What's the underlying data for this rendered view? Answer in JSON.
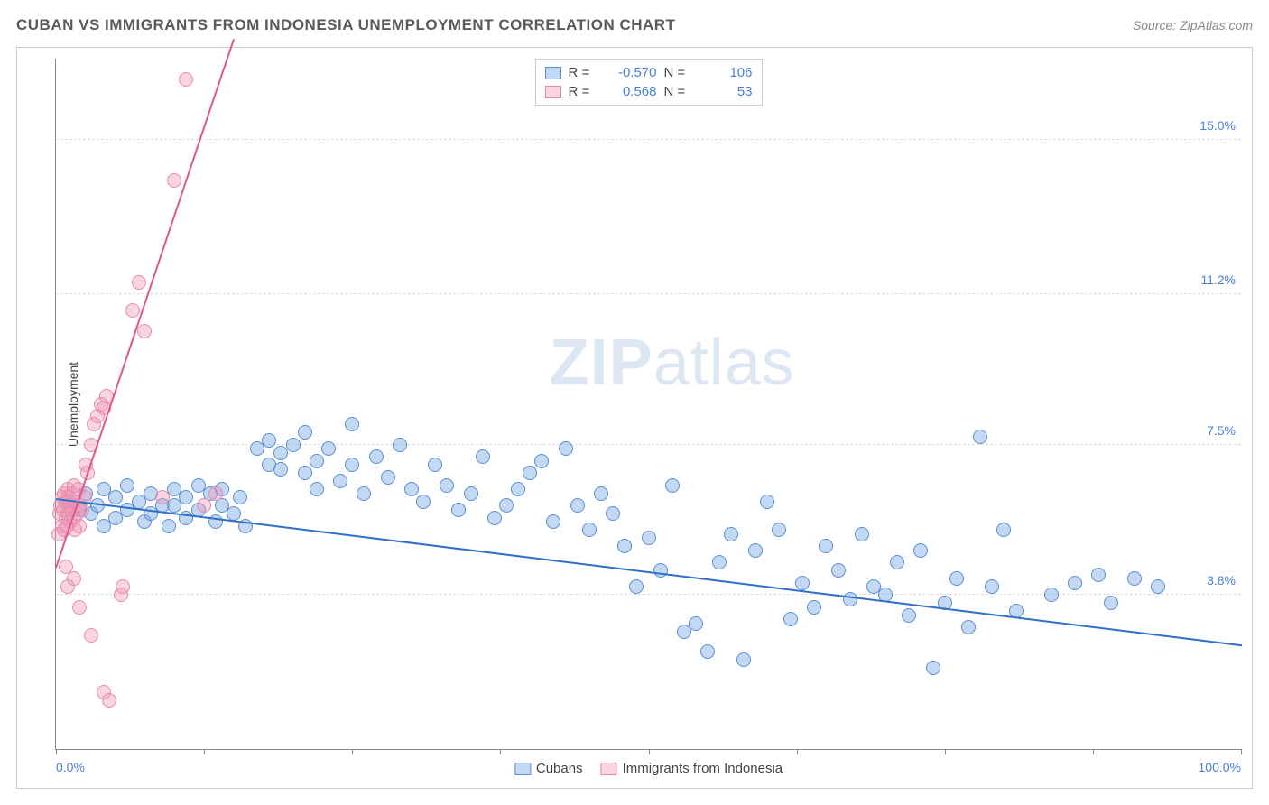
{
  "header": {
    "title": "CUBAN VS IMMIGRANTS FROM INDONESIA UNEMPLOYMENT CORRELATION CHART",
    "source": "Source: ZipAtlas.com"
  },
  "watermark": {
    "zip": "ZIP",
    "atlas": "atlas"
  },
  "chart": {
    "type": "scatter",
    "ylabel": "Unemployment",
    "xlim": [
      0,
      100
    ],
    "ylim": [
      0,
      17
    ],
    "x_ticks": [
      0,
      12.5,
      25,
      37.5,
      50,
      62.5,
      75,
      87.5,
      100
    ],
    "x_tick_labels_shown": {
      "0": "0.0%",
      "100": "100.0%"
    },
    "y_gridlines": [
      3.8,
      7.5,
      11.2,
      15.0
    ],
    "y_tick_labels": [
      "3.8%",
      "7.5%",
      "11.2%",
      "15.0%"
    ],
    "background_color": "#ffffff",
    "grid_color": "#dddddd",
    "axis_color": "#888888",
    "label_color": "#4a7fd8",
    "point_radius": 8,
    "series": [
      {
        "name": "Cubans",
        "fill_color": "rgba(122, 168, 228, 0.45)",
        "stroke_color": "#5a8fd0",
        "trend_color": "#2e6fc9",
        "R": "-0.570",
        "N": "106",
        "trend": {
          "x1": 0,
          "y1": 6.2,
          "x2": 100,
          "y2": 2.6
        },
        "points": [
          [
            1,
            6.1
          ],
          [
            2,
            5.9
          ],
          [
            2.5,
            6.3
          ],
          [
            3,
            5.8
          ],
          [
            3.5,
            6.0
          ],
          [
            4,
            6.4
          ],
          [
            4,
            5.5
          ],
          [
            5,
            6.2
          ],
          [
            5,
            5.7
          ],
          [
            6,
            6.5
          ],
          [
            6,
            5.9
          ],
          [
            7,
            6.1
          ],
          [
            7.5,
            5.6
          ],
          [
            8,
            6.3
          ],
          [
            8,
            5.8
          ],
          [
            9,
            6.0
          ],
          [
            9.5,
            5.5
          ],
          [
            10,
            6.4
          ],
          [
            10,
            6.0
          ],
          [
            11,
            5.7
          ],
          [
            11,
            6.2
          ],
          [
            12,
            6.5
          ],
          [
            12,
            5.9
          ],
          [
            13,
            6.3
          ],
          [
            13.5,
            5.6
          ],
          [
            14,
            6.0
          ],
          [
            14,
            6.4
          ],
          [
            15,
            5.8
          ],
          [
            15.5,
            6.2
          ],
          [
            16,
            5.5
          ],
          [
            17,
            7.4
          ],
          [
            18,
            7.0
          ],
          [
            18,
            7.6
          ],
          [
            19,
            6.9
          ],
          [
            19,
            7.3
          ],
          [
            20,
            7.5
          ],
          [
            21,
            6.8
          ],
          [
            21,
            7.8
          ],
          [
            22,
            7.1
          ],
          [
            22,
            6.4
          ],
          [
            23,
            7.4
          ],
          [
            24,
            6.6
          ],
          [
            25,
            7.0
          ],
          [
            25,
            8.0
          ],
          [
            26,
            6.3
          ],
          [
            27,
            7.2
          ],
          [
            28,
            6.7
          ],
          [
            29,
            7.5
          ],
          [
            30,
            6.4
          ],
          [
            31,
            6.1
          ],
          [
            32,
            7.0
          ],
          [
            33,
            6.5
          ],
          [
            34,
            5.9
          ],
          [
            35,
            6.3
          ],
          [
            36,
            7.2
          ],
          [
            37,
            5.7
          ],
          [
            38,
            6.0
          ],
          [
            39,
            6.4
          ],
          [
            40,
            6.8
          ],
          [
            41,
            7.1
          ],
          [
            42,
            5.6
          ],
          [
            43,
            7.4
          ],
          [
            44,
            6.0
          ],
          [
            45,
            5.4
          ],
          [
            46,
            6.3
          ],
          [
            47,
            5.8
          ],
          [
            48,
            5.0
          ],
          [
            49,
            4.0
          ],
          [
            50,
            5.2
          ],
          [
            51,
            4.4
          ],
          [
            52,
            6.5
          ],
          [
            53,
            2.9
          ],
          [
            54,
            3.1
          ],
          [
            55,
            2.4
          ],
          [
            56,
            4.6
          ],
          [
            57,
            5.3
          ],
          [
            58,
            2.2
          ],
          [
            59,
            4.9
          ],
          [
            60,
            6.1
          ],
          [
            61,
            5.4
          ],
          [
            62,
            3.2
          ],
          [
            63,
            4.1
          ],
          [
            64,
            3.5
          ],
          [
            65,
            5.0
          ],
          [
            66,
            4.4
          ],
          [
            67,
            3.7
          ],
          [
            68,
            5.3
          ],
          [
            69,
            4.0
          ],
          [
            70,
            3.8
          ],
          [
            71,
            4.6
          ],
          [
            72,
            3.3
          ],
          [
            73,
            4.9
          ],
          [
            74,
            2.0
          ],
          [
            75,
            3.6
          ],
          [
            76,
            4.2
          ],
          [
            77,
            3.0
          ],
          [
            78,
            7.7
          ],
          [
            79,
            4.0
          ],
          [
            80,
            5.4
          ],
          [
            81,
            3.4
          ],
          [
            84,
            3.8
          ],
          [
            86,
            4.1
          ],
          [
            88,
            4.3
          ],
          [
            89,
            3.6
          ],
          [
            91,
            4.2
          ],
          [
            93,
            4.0
          ]
        ]
      },
      {
        "name": "Immigrants from Indonesia",
        "fill_color": "rgba(240, 150, 180, 0.40)",
        "stroke_color": "#e68aad",
        "trend_color": "#e05590",
        "R": "0.568",
        "N": "53",
        "trend": {
          "x1": 0,
          "y1": 4.5,
          "x2": 15,
          "y2": 17.5
        },
        "points": [
          [
            0.2,
            5.3
          ],
          [
            0.3,
            5.8
          ],
          [
            0.4,
            6.0
          ],
          [
            0.5,
            5.5
          ],
          [
            0.5,
            6.2
          ],
          [
            0.6,
            5.9
          ],
          [
            0.7,
            5.4
          ],
          [
            0.7,
            6.3
          ],
          [
            0.8,
            5.7
          ],
          [
            0.8,
            6.1
          ],
          [
            0.9,
            5.5
          ],
          [
            1.0,
            6.4
          ],
          [
            1.0,
            5.8
          ],
          [
            1.1,
            6.2
          ],
          [
            1.2,
            5.6
          ],
          [
            1.2,
            6.0
          ],
          [
            1.3,
            5.9
          ],
          [
            1.4,
            6.3
          ],
          [
            1.5,
            5.7
          ],
          [
            1.5,
            6.5
          ],
          [
            1.6,
            5.4
          ],
          [
            1.7,
            6.1
          ],
          [
            1.8,
            5.8
          ],
          [
            1.9,
            6.4
          ],
          [
            2.0,
            5.5
          ],
          [
            2.0,
            6.0
          ],
          [
            2.2,
            5.9
          ],
          [
            2.4,
            6.2
          ],
          [
            2.5,
            7.0
          ],
          [
            2.7,
            6.8
          ],
          [
            3.0,
            7.5
          ],
          [
            3.2,
            8.0
          ],
          [
            3.5,
            8.2
          ],
          [
            3.8,
            8.5
          ],
          [
            4.0,
            8.4
          ],
          [
            4.3,
            8.7
          ],
          [
            0.8,
            4.5
          ],
          [
            1.0,
            4.0
          ],
          [
            1.5,
            4.2
          ],
          [
            2.0,
            3.5
          ],
          [
            3.0,
            2.8
          ],
          [
            4.0,
            1.4
          ],
          [
            4.5,
            1.2
          ],
          [
            5.5,
            3.8
          ],
          [
            5.6,
            4.0
          ],
          [
            6.5,
            10.8
          ],
          [
            7.0,
            11.5
          ],
          [
            7.5,
            10.3
          ],
          [
            9.0,
            6.2
          ],
          [
            10.0,
            14.0
          ],
          [
            11.0,
            16.5
          ],
          [
            12.5,
            6.0
          ],
          [
            13.5,
            6.3
          ]
        ]
      }
    ]
  },
  "legend_bottom": [
    {
      "label": "Cubans",
      "fill": "rgba(122, 168, 228, 0.45)",
      "stroke": "#5a8fd0"
    },
    {
      "label": "Immigrants from Indonesia",
      "fill": "rgba(240, 150, 180, 0.40)",
      "stroke": "#e68aad"
    }
  ]
}
